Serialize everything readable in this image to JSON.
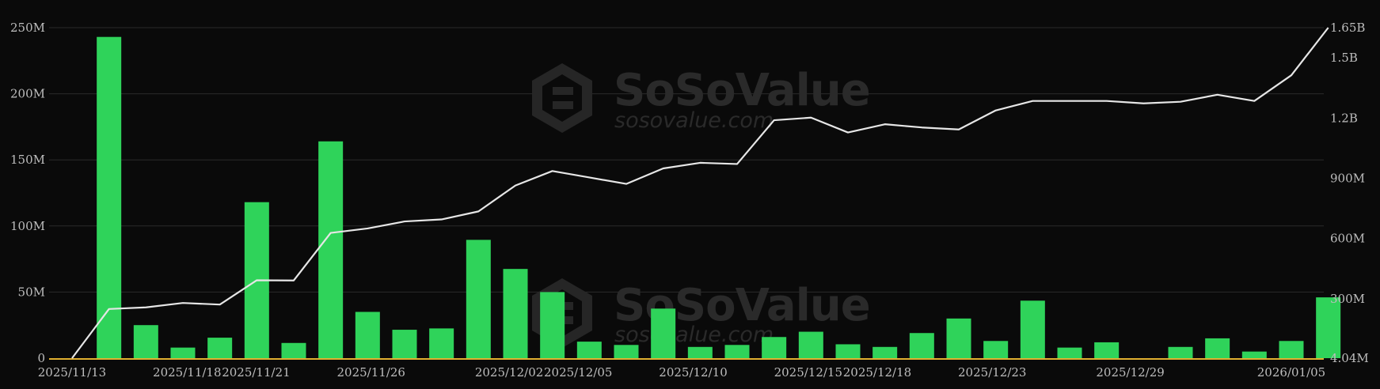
{
  "watermark": {
    "brand": "SoSoValue",
    "url": "sosovalue.com"
  },
  "colors": {
    "bar": "#2fd35a",
    "line": "#e6e6e6",
    "baseline": "#e0b030",
    "grid": "#2b2b2b",
    "background": "#0a0a0a"
  },
  "chart_data": {
    "type": "bar",
    "title": "",
    "xlabel": "",
    "ylabel": "",
    "ylim": [
      0,
      250000000
    ],
    "y2lim": [
      4040000,
      1650000000
    ],
    "y_ticks": [
      "0",
      "50M",
      "100M",
      "150M",
      "200M",
      "250M"
    ],
    "y2_ticks": [
      "4.04M",
      "300M",
      "600M",
      "900M",
      "1.2B",
      "1.5B",
      "1.65B"
    ],
    "x_ticks": [
      "2025/11/13",
      "2025/11/18",
      "2025/11/21",
      "2025/11/26",
      "2025/12/02",
      "2025/12/05",
      "2025/12/10",
      "2025/12/15",
      "2025/12/18",
      "2025/12/23",
      "2025/12/29",
      "2026/01/05"
    ],
    "grid": true,
    "legend": "none",
    "series": [
      {
        "type": "bar",
        "axis": "left",
        "values": [
          0,
          243000000,
          25000000,
          8000000,
          15500000,
          118000000,
          11500000,
          164000000,
          35000000,
          21500000,
          22500000,
          89500000,
          67500000,
          50000000,
          12500000,
          10000000,
          37500000,
          8500000,
          10000000,
          16000000,
          20000000,
          10500000,
          8500000,
          19000000,
          30000000,
          13000000,
          43500000,
          8000000,
          12000000,
          0,
          8500000,
          15000000,
          5000000,
          13000000,
          46000000
        ]
      },
      {
        "type": "line",
        "axis": "right",
        "values": [
          4040000,
          249000000,
          257000000,
          279000000,
          271000000,
          392000000,
          391000000,
          628000000,
          650000000,
          685000000,
          695000000,
          735000000,
          864000000,
          936000000,
          904000000,
          872000000,
          949000000,
          977000000,
          971000000,
          1189000000,
          1202000000,
          1128000000,
          1169000000,
          1153000000,
          1143000000,
          1238000000,
          1285000000,
          1285000000,
          1285000000,
          1273000000,
          1281000000,
          1316000000,
          1285000000,
          1413000000,
          1650000000
        ]
      }
    ]
  }
}
